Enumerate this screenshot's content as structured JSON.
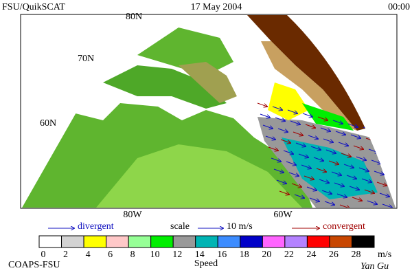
{
  "header": {
    "title": "FSU/QuikSCAT",
    "date": "17 May 2004",
    "time": "00:00"
  },
  "map": {
    "lat_labels": [
      "80N",
      "70N",
      "60N"
    ],
    "lon_labels": [
      "80W",
      "60W"
    ]
  },
  "legend": {
    "divergent": "divergent",
    "scale": "scale",
    "scale_value": "10 m/s",
    "convergent": "convergent"
  },
  "colorbar": {
    "labels": [
      0,
      2,
      4,
      6,
      8,
      10,
      12,
      14,
      16,
      18,
      20,
      22,
      24,
      26,
      28
    ],
    "colors": [
      "#ffffff",
      "#d3d3d3",
      "#ffff00",
      "#ffc8c8",
      "#96ff96",
      "#00ee00",
      "#999999",
      "#00b4b4",
      "#3c8cff",
      "#0000c8",
      "#ff64ff",
      "#b482ff",
      "#ff0000",
      "#c84600",
      "#000000"
    ],
    "unit": "m/s",
    "title": "Speed"
  },
  "footer": {
    "institution": "COAPS-FSU",
    "author": "Yan Gu"
  }
}
